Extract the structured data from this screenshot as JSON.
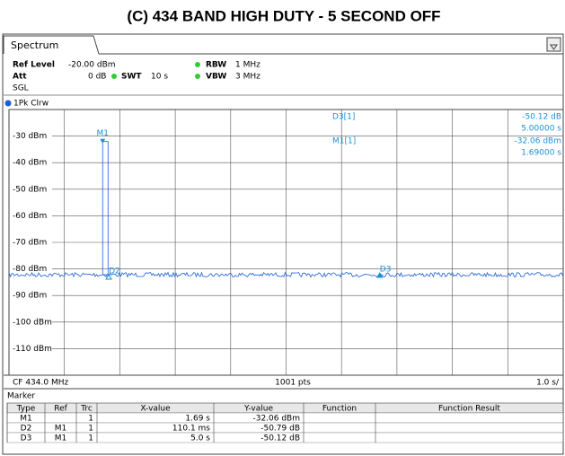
{
  "title": "(C) 434 BAND HIGH DUTY - 5 SECOND OFF",
  "tab": "Spectrum",
  "ref_level": {
    "label": "Ref Level",
    "value": "-20.00 dBm"
  },
  "rbw": {
    "label": "RBW",
    "value": "1 MHz"
  },
  "att": {
    "label": "Att",
    "value": "0 dB"
  },
  "swt": {
    "label": "SWT",
    "value": "10 s"
  },
  "vbw": {
    "label": "VBW",
    "value": "3 MHz"
  },
  "mode": "SGL",
  "trace_label": "1Pk Clrw",
  "plot": {
    "xlim": [
      0,
      10
    ],
    "ylim": [
      -120,
      -20
    ],
    "yticks": [
      {
        "value": -30,
        "label": "-30 dBm"
      },
      {
        "value": -40,
        "label": "-40 dBm"
      },
      {
        "value": -50,
        "label": "-50 dBm"
      },
      {
        "value": -60,
        "label": "-60 dBm"
      },
      {
        "value": -70,
        "label": "-70 dBm"
      },
      {
        "value": -80,
        "label": "-80 dBm"
      },
      {
        "value": -90,
        "label": "-90 dBm"
      },
      {
        "value": -100,
        "label": "-100 dBm"
      },
      {
        "value": -110,
        "label": "-110 dBm"
      }
    ],
    "markers": [
      {
        "name": "M1",
        "x": 1.69,
        "y": -32.06
      },
      {
        "name": "D2",
        "x": 0.1101,
        "y": -50.79
      },
      {
        "name": "D3",
        "x": 5.0,
        "y": -50.12
      }
    ]
  },
  "readout": [
    {
      "name": "D3[1]",
      "value": "-50.12 dB",
      "x": "5.00000 s"
    },
    {
      "name": "M1[1]",
      "value": "-32.06 dBm",
      "x": "1.69000 s"
    }
  ],
  "footer": {
    "cf": "CF 434.0 MHz",
    "points": "1001 pts",
    "span": "1.0 s/"
  },
  "table": {
    "title": "Marker",
    "header": [
      "Type",
      "Ref",
      "Trc",
      "X-value",
      "Y-value",
      "Function",
      "Function Result"
    ],
    "rows": [
      [
        "M1",
        "",
        "1",
        "1.69 s",
        "-32.06 dBm",
        "",
        ""
      ],
      [
        "D2",
        "M1",
        "1",
        "110.1 ms",
        "-50.79 dB",
        "",
        ""
      ],
      [
        "D3",
        "M1",
        "1",
        "5.0 s",
        "-50.12 dB",
        "",
        ""
      ]
    ]
  }
}
